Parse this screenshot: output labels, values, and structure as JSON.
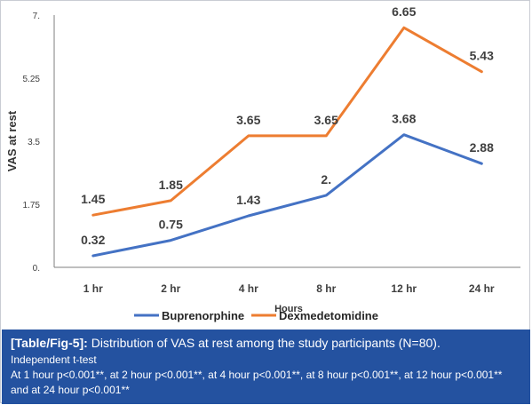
{
  "chart_data": {
    "type": "line",
    "categories": [
      "1 hr",
      "2 hr",
      "4 hr",
      "8 hr",
      "12 hr",
      "24 hr"
    ],
    "series": [
      {
        "name": "Buprenorphine",
        "color": "#4472c4",
        "values": [
          0.32,
          0.75,
          1.43,
          2.0,
          3.68,
          2.88
        ],
        "labels": [
          "0.32",
          "0.75",
          "1.43",
          "2.",
          "3.68",
          "2.88"
        ]
      },
      {
        "name": "Dexmedetomidine",
        "color": "#ed7d31",
        "values": [
          1.45,
          1.85,
          3.65,
          3.65,
          6.65,
          5.43
        ],
        "labels": [
          "1.45",
          "1.85",
          "3.65",
          "3.65",
          "6.65",
          "5.43"
        ]
      }
    ],
    "xlabel": "Hours",
    "ylabel": "VAS at rest",
    "ylim": [
      0,
      7
    ],
    "yticks": [
      0,
      1.75,
      3.5,
      5.25,
      7
    ],
    "ytick_labels": [
      "0.",
      "1.75",
      "3.5",
      "5.25",
      "7."
    ],
    "grid": false,
    "legend": "bottom"
  },
  "caption": {
    "label": "[Table/Fig-5]:",
    "title": "Distribution of VAS at rest among the study participants (N=80).",
    "test": "Independent t-test",
    "note": "At 1 hour p<0.001**, at 2 hour p<0.001**, at 4 hour p<0.001**, at 8 hour p<0.001**, at 12 hour p<0.001** and at 24 hour p<0.001**"
  }
}
